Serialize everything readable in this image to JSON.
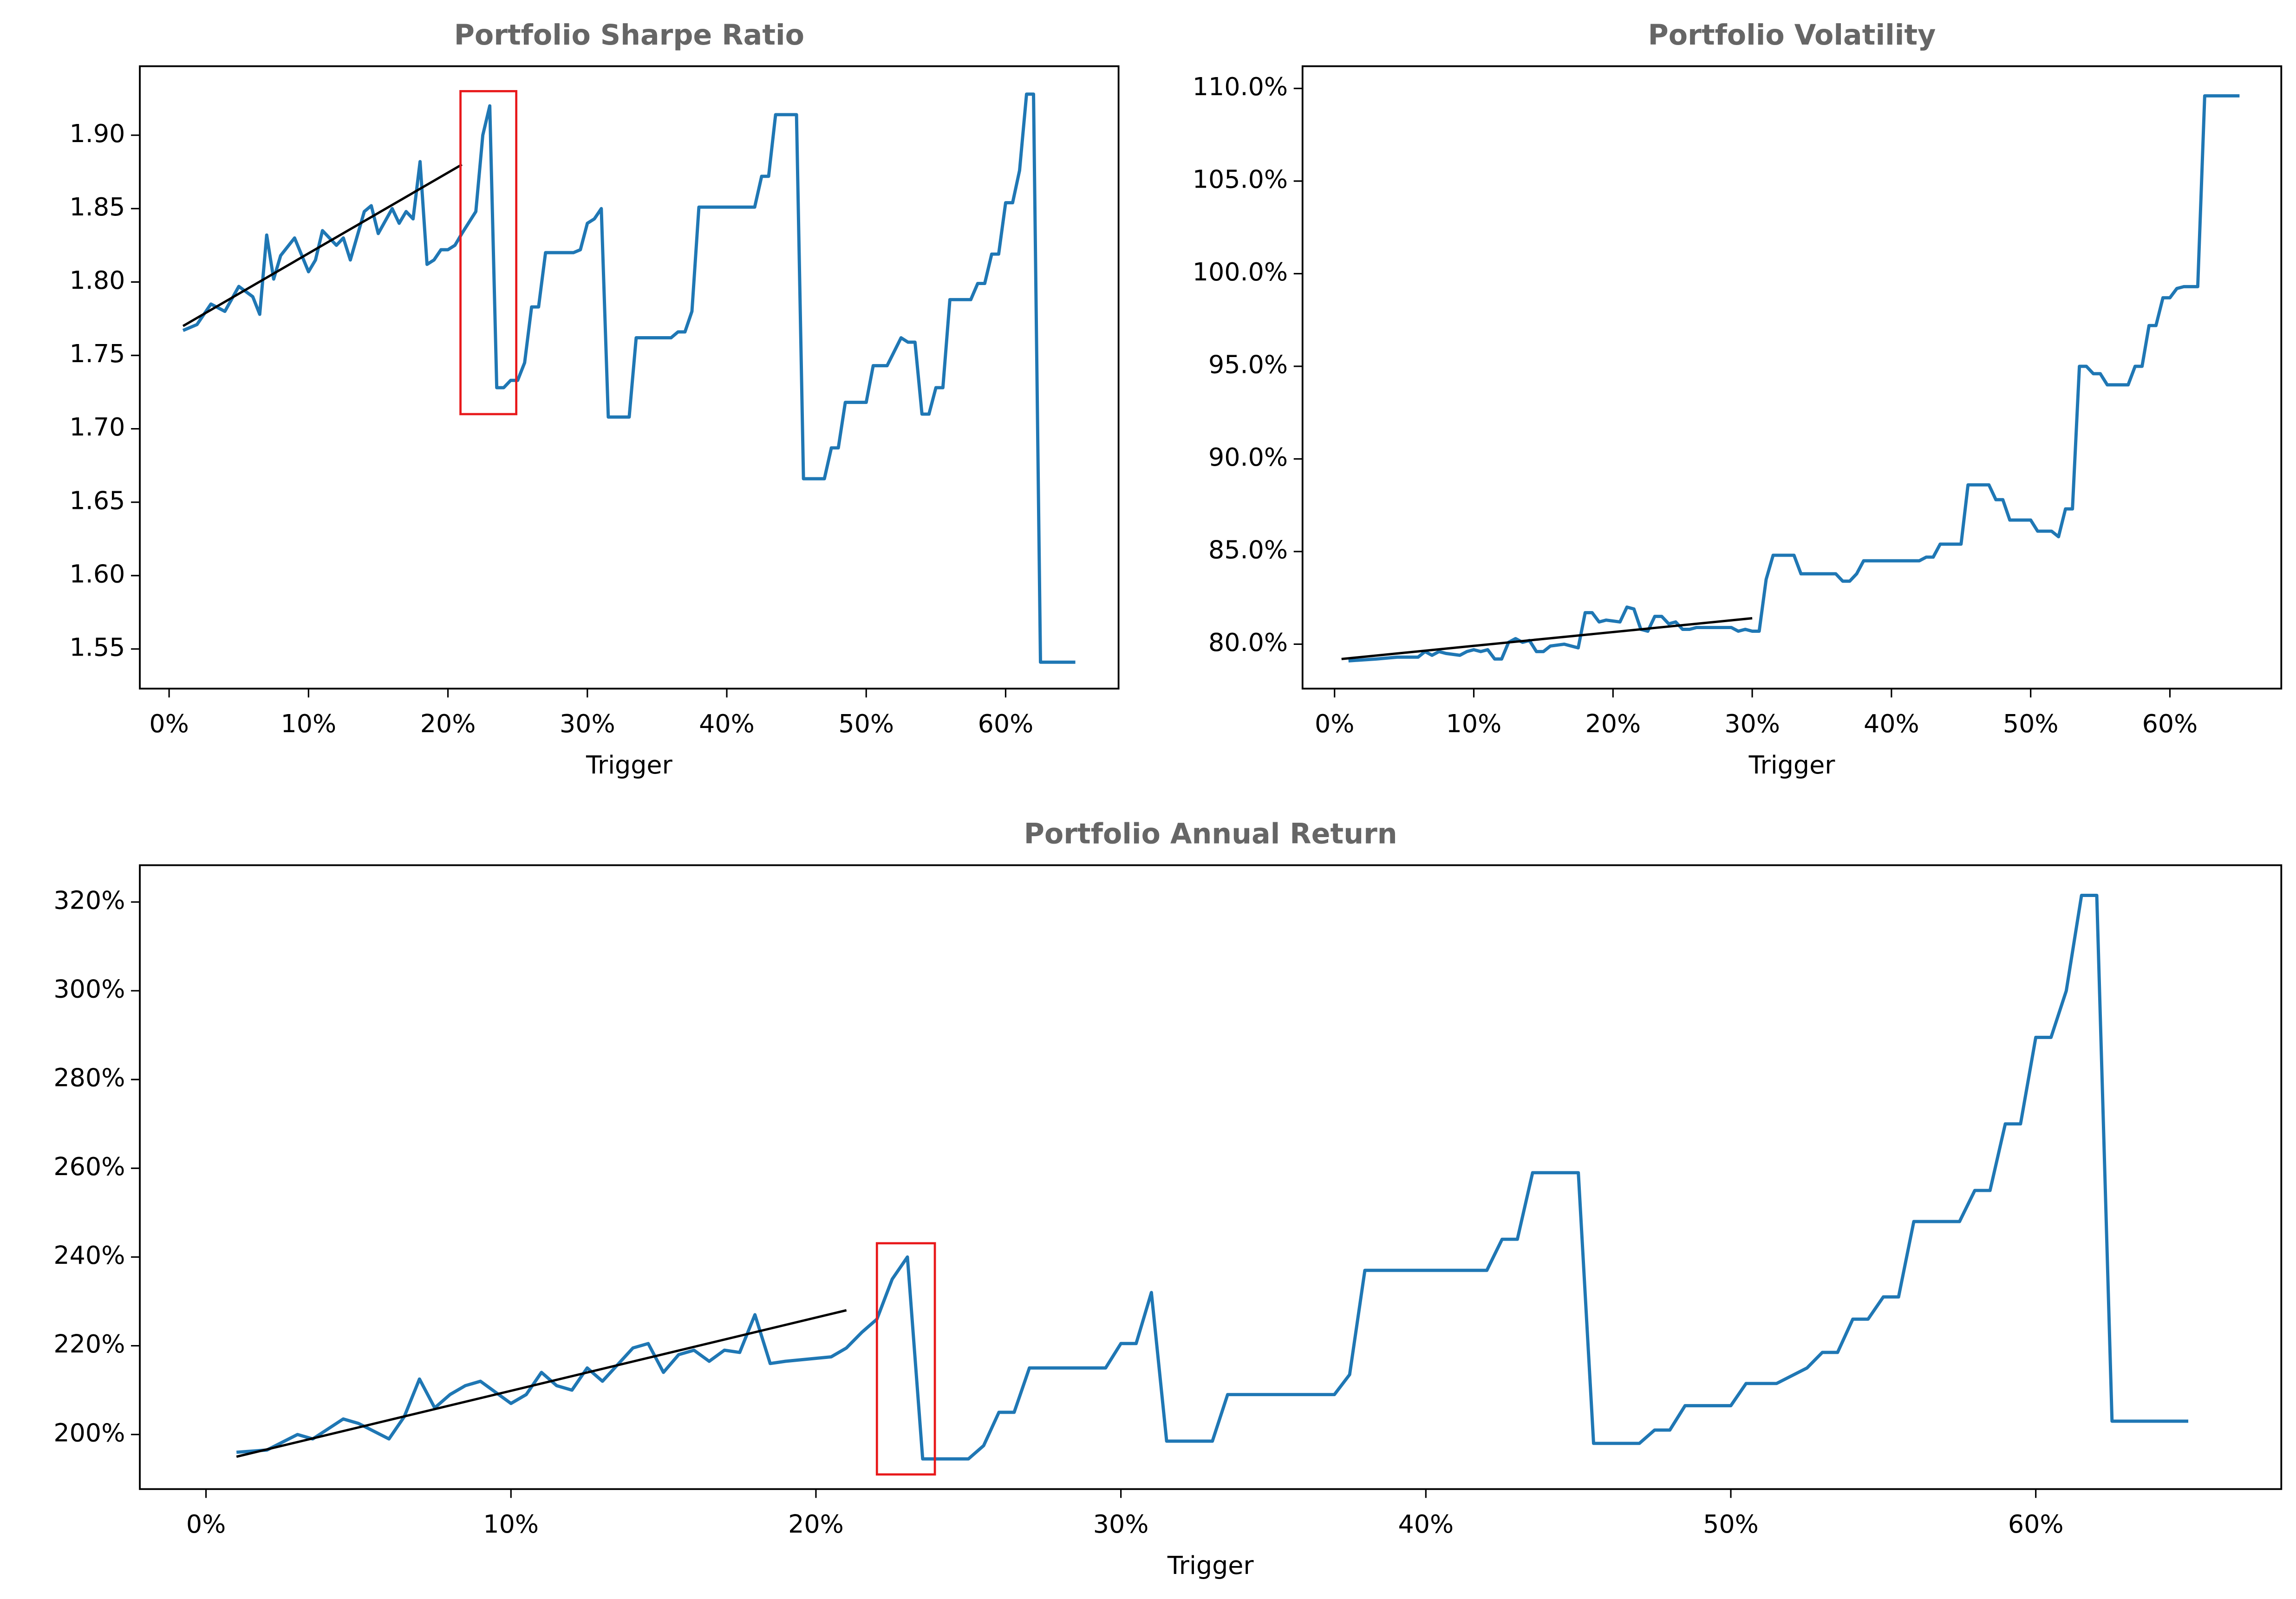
{
  "chart_data": [
    {
      "type": "line",
      "title": "Portfolio Sharpe Ratio",
      "xlabel": "Trigger",
      "xlim": [
        -2.1,
        68.1
      ],
      "ylim": [
        1.523,
        1.947
      ],
      "xticks": [
        {
          "value": 0,
          "label": "0%"
        },
        {
          "value": 10,
          "label": "10%"
        },
        {
          "value": 20,
          "label": "20%"
        },
        {
          "value": 30,
          "label": "30%"
        },
        {
          "value": 40,
          "label": "40%"
        },
        {
          "value": 50,
          "label": "50%"
        },
        {
          "value": 60,
          "label": "60%"
        }
      ],
      "yticks": [
        1.55,
        {
          "value": 1.6,
          "label": "1.60"
        },
        1.65,
        {
          "value": 1.7,
          "label": "1.70"
        },
        1.75,
        {
          "value": 1.8,
          "label": "1.80"
        },
        1.85,
        {
          "value": 1.9,
          "label": "1.90"
        }
      ],
      "series": [
        {
          "color": "#1f77b4",
          "x": [
            1,
            2,
            3,
            4,
            5,
            6,
            6.5,
            7,
            7.5,
            8,
            9,
            10,
            10.5,
            11,
            12,
            12.5,
            13,
            14,
            14.5,
            15,
            16,
            16.5,
            17,
            17.5,
            18,
            18.5,
            19,
            19.5,
            20,
            20.5,
            21,
            22,
            22.5,
            23,
            23.5,
            24,
            24.5,
            25,
            25.5,
            26,
            26.5,
            27,
            29,
            29.5,
            30,
            30.5,
            31,
            31.5,
            33,
            33.5,
            36,
            36.5,
            37,
            37.5,
            38,
            42,
            42.5,
            43,
            43.5,
            45,
            45.5,
            47,
            47.5,
            48,
            48.5,
            50,
            50.5,
            51.5,
            52.5,
            53,
            53.5,
            54,
            54.5,
            55,
            55.5,
            56,
            57.5,
            58,
            58.5,
            59,
            59.5,
            60,
            60.5,
            61,
            61.5,
            62,
            62.5,
            65
          ],
          "values": [
            1.767,
            1.771,
            1.785,
            1.78,
            1.797,
            1.79,
            1.778,
            1.832,
            1.802,
            1.818,
            1.83,
            1.807,
            1.815,
            1.835,
            1.825,
            1.83,
            1.815,
            1.848,
            1.852,
            1.833,
            1.85,
            1.84,
            1.848,
            1.843,
            1.882,
            1.812,
            1.815,
            1.822,
            1.822,
            1.825,
            1.833,
            1.848,
            1.9,
            1.92,
            1.728,
            1.728,
            1.733,
            1.733,
            1.745,
            1.783,
            1.783,
            1.82,
            1.82,
            1.822,
            1.84,
            1.843,
            1.85,
            1.708,
            1.708,
            1.762,
            1.762,
            1.766,
            1.766,
            1.78,
            1.851,
            1.851,
            1.872,
            1.872,
            1.914,
            1.914,
            1.666,
            1.666,
            1.687,
            1.687,
            1.718,
            1.718,
            1.743,
            1.743,
            1.762,
            1.759,
            1.759,
            1.71,
            1.71,
            1.728,
            1.728,
            1.788,
            1.788,
            1.799,
            1.799,
            1.819,
            1.819,
            1.854,
            1.854,
            1.876,
            1.928,
            1.928,
            1.541,
            1.541
          ]
        },
        {
          "color": "#000000",
          "x": [
            1,
            21
          ],
          "values": [
            1.77,
            1.88
          ]
        }
      ],
      "highlight": {
        "x": [
          20.9,
          24.9
        ],
        "y": [
          1.71,
          1.93
        ],
        "color": "#e8191b"
      }
    },
    {
      "type": "line",
      "title": "Portfolio Volatility",
      "xlabel": "Trigger",
      "xlim": [
        -2.3,
        68.0
      ],
      "ylim": [
        77.6,
        111.2
      ],
      "xticks": [
        {
          "value": 0,
          "label": "0%"
        },
        {
          "value": 10,
          "label": "10%"
        },
        {
          "value": 20,
          "label": "20%"
        },
        {
          "value": 30,
          "label": "30%"
        },
        {
          "value": 40,
          "label": "40%"
        },
        {
          "value": 50,
          "label": "50%"
        },
        {
          "value": 60,
          "label": "60%"
        }
      ],
      "yticks": [
        {
          "value": 80,
          "label": "80.0%"
        },
        {
          "value": 85,
          "label": "85.0%"
        },
        {
          "value": 90,
          "label": "90.0%"
        },
        {
          "value": 95,
          "label": "95.0%"
        },
        {
          "value": 100,
          "label": "100.0%"
        },
        {
          "value": 105,
          "label": "105.0%"
        },
        {
          "value": 110,
          "label": "110.0%"
        }
      ],
      "series": [
        {
          "color": "#1f77b4",
          "x": [
            1,
            3,
            4.5,
            6,
            6.5,
            7,
            7.5,
            8,
            9,
            9.5,
            10,
            10.5,
            11,
            11.5,
            12,
            12.5,
            13,
            13.5,
            14,
            14.5,
            15,
            15.5,
            16.5,
            17.5,
            18,
            18.5,
            19,
            19.5,
            20.5,
            21,
            21.5,
            22,
            22.5,
            23,
            23.5,
            24,
            24.5,
            25,
            25.5,
            26,
            28.5,
            29,
            29.5,
            30,
            30.5,
            31,
            31.5,
            33,
            33.5,
            36,
            36.5,
            37,
            37.5,
            38,
            42,
            42.5,
            43,
            43.5,
            45,
            45.5,
            47,
            47.5,
            48,
            48.5,
            50,
            50.5,
            51.5,
            52,
            52.5,
            53,
            53.5,
            54,
            54.5,
            55,
            55.5,
            57,
            57.5,
            58,
            58.5,
            59,
            59.5,
            60,
            60.5,
            61,
            62,
            62.5,
            65
          ],
          "values": [
            79.1,
            79.2,
            79.3,
            79.3,
            79.6,
            79.4,
            79.6,
            79.5,
            79.4,
            79.6,
            79.7,
            79.6,
            79.7,
            79.2,
            79.2,
            80.1,
            80.3,
            80.1,
            80.2,
            79.6,
            79.6,
            79.9,
            80.0,
            79.8,
            81.7,
            81.7,
            81.2,
            81.3,
            81.2,
            82.0,
            81.9,
            80.8,
            80.7,
            81.5,
            81.5,
            81.1,
            81.2,
            80.8,
            80.8,
            80.9,
            80.9,
            80.7,
            80.8,
            80.7,
            80.7,
            83.5,
            84.8,
            84.8,
            83.8,
            83.8,
            83.4,
            83.4,
            83.8,
            84.5,
            84.5,
            84.7,
            84.7,
            85.4,
            85.4,
            88.6,
            88.6,
            87.8,
            87.8,
            86.7,
            86.7,
            86.1,
            86.1,
            85.8,
            87.3,
            87.3,
            95.0,
            95.0,
            94.6,
            94.6,
            94.0,
            94.0,
            95.0,
            95.0,
            97.2,
            97.2,
            98.7,
            98.7,
            99.2,
            99.3,
            99.3,
            109.6,
            109.6
          ]
        },
        {
          "color": "#000000",
          "x": [
            0.5,
            30
          ],
          "values": [
            79.2,
            81.4
          ]
        }
      ]
    },
    {
      "type": "line",
      "title": "Portfolio Annual Return",
      "xlabel": "Trigger",
      "xlim": [
        -2.17,
        68.05
      ],
      "ylim": [
        187.7,
        328.3
      ],
      "xticks": [
        {
          "value": 0,
          "label": "0%"
        },
        {
          "value": 10,
          "label": "10%"
        },
        {
          "value": 20,
          "label": "20%"
        },
        {
          "value": 30,
          "label": "30%"
        },
        {
          "value": 40,
          "label": "40%"
        },
        {
          "value": 50,
          "label": "50%"
        },
        {
          "value": 60,
          "label": "60%"
        }
      ],
      "yticks": [
        {
          "value": 200,
          "label": "200%"
        },
        {
          "value": 220,
          "label": "220%"
        },
        {
          "value": 240,
          "label": "240%"
        },
        {
          "value": 260,
          "label": "260%"
        },
        {
          "value": 280,
          "label": "280%"
        },
        {
          "value": 300,
          "label": "300%"
        },
        {
          "value": 320,
          "label": "320%"
        }
      ],
      "series": [
        {
          "color": "#1f77b4",
          "x": [
            1,
            2,
            3,
            3.5,
            4.5,
            5,
            6,
            6.5,
            7,
            7.5,
            8,
            8.5,
            9,
            10,
            10.5,
            11,
            11.5,
            12,
            12.5,
            13,
            14,
            14.5,
            15,
            15.5,
            16,
            16.5,
            17,
            17.5,
            18,
            18.5,
            19,
            20.5,
            21,
            21.5,
            22,
            22.5,
            23,
            23.5,
            25,
            25.5,
            26,
            26.5,
            27,
            29.5,
            30,
            30.5,
            31,
            31.5,
            33,
            33.5,
            37,
            37.5,
            38,
            42,
            42.5,
            43,
            43.5,
            45,
            45.5,
            47,
            47.5,
            48,
            48.5,
            50,
            50.5,
            51.5,
            52.5,
            53,
            53.5,
            54,
            54.5,
            55,
            55.5,
            56,
            57.5,
            58,
            58.5,
            59,
            59.5,
            60,
            60.5,
            61,
            61.5,
            62,
            62.5,
            65
          ],
          "values": [
            196,
            196.5,
            200,
            199,
            203.5,
            202.5,
            199,
            204,
            212.5,
            206,
            209,
            211,
            212,
            207,
            209,
            214,
            211,
            210,
            215,
            212,
            219.5,
            220.5,
            214,
            218,
            219,
            216.5,
            219,
            218.5,
            227,
            216,
            216.5,
            217.5,
            219.5,
            223,
            226,
            235,
            240,
            194.5,
            194.5,
            197.5,
            205,
            205,
            215,
            215,
            220.5,
            220.5,
            232,
            198.5,
            198.5,
            209,
            209,
            213.5,
            237,
            237,
            244,
            244,
            259,
            259,
            198,
            198,
            201,
            201,
            206.5,
            206.5,
            211.5,
            211.5,
            215,
            218.5,
            218.5,
            226,
            226,
            231,
            231,
            248,
            248,
            255,
            255,
            270,
            270,
            289.5,
            289.5,
            300,
            321.5,
            321.5,
            203,
            203
          ]
        },
        {
          "color": "#000000",
          "x": [
            1,
            21
          ],
          "values": [
            195,
            228
          ]
        }
      ],
      "highlight": {
        "x": [
          22.0,
          23.9
        ],
        "y": [
          191,
          243.1
        ],
        "color": "#e8191b"
      }
    }
  ]
}
